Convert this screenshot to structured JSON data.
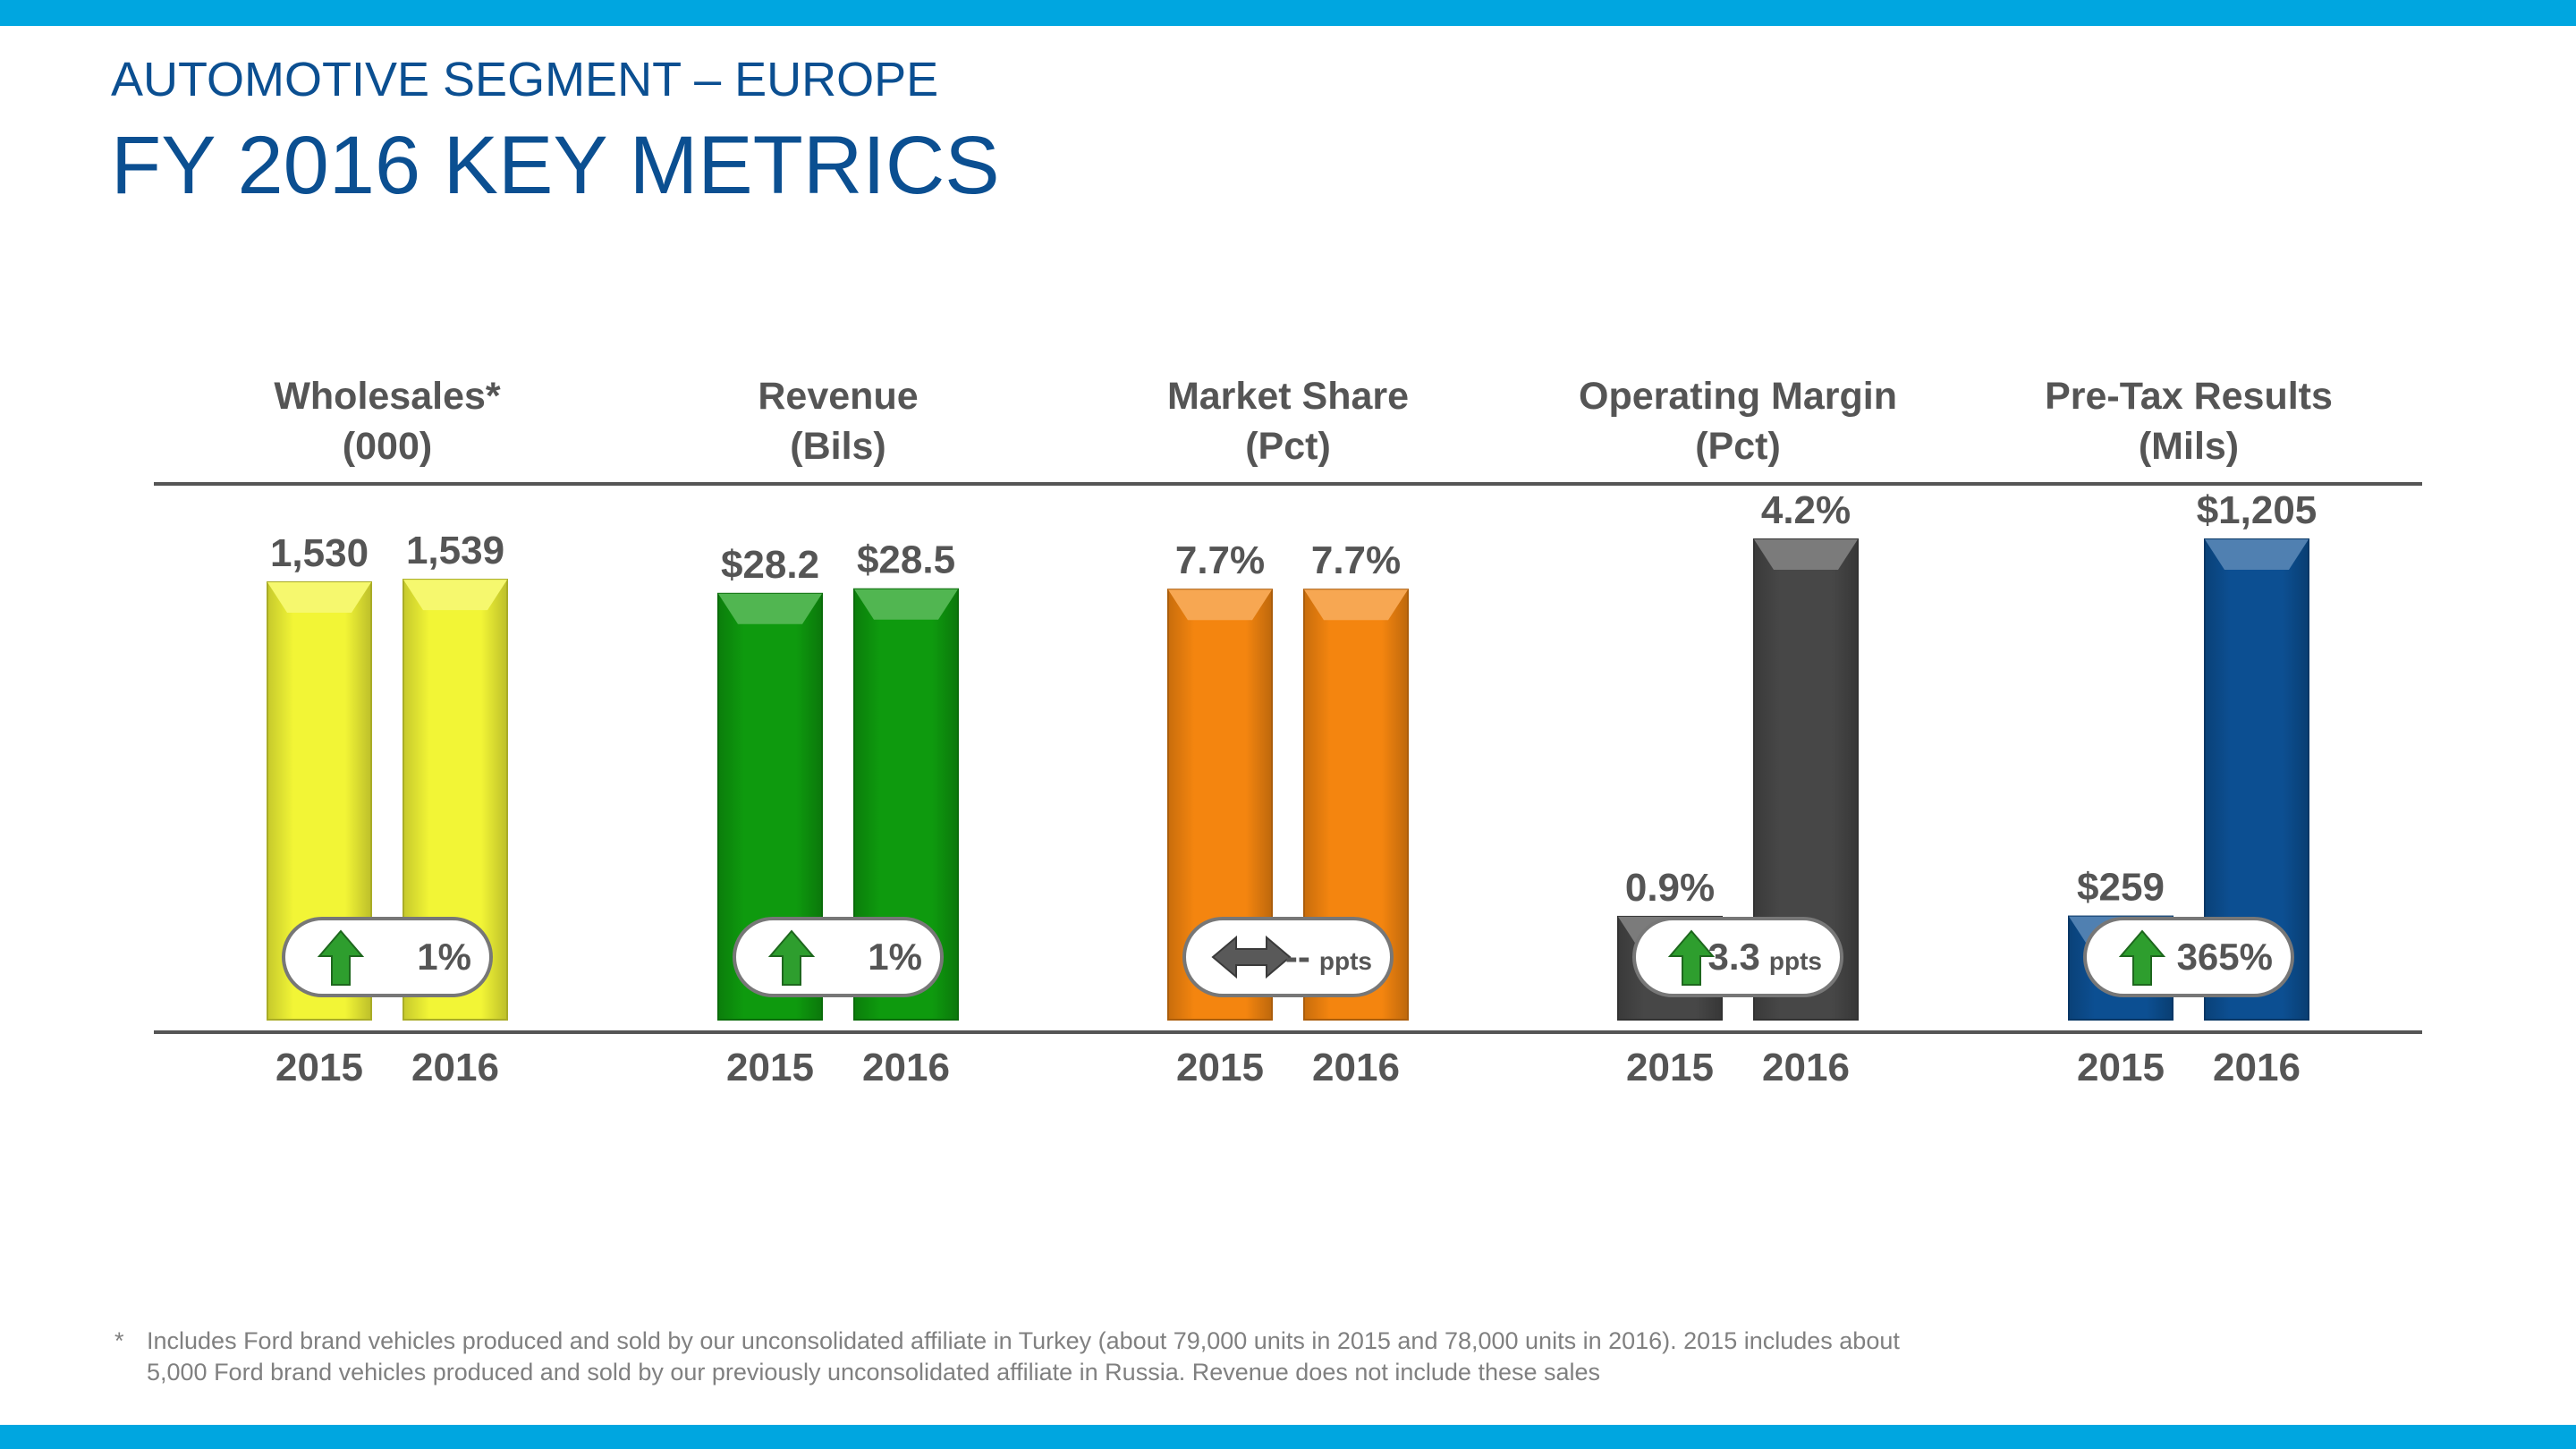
{
  "page": {
    "subtitle": "AUTOMOTIVE SEGMENT – EUROPE",
    "title": "FY 2016 KEY METRICS",
    "footnote_marker": "*",
    "footnote": "Includes Ford brand vehicles produced and sold by our unconsolidated affiliate in Turkey (about 79,000 units in 2015 and 78,000 units in 2016).  2015 includes about 5,000 Ford brand vehicles produced and sold by our previously unconsolidated affiliate in Russia. Revenue does not include these sales"
  },
  "colors": {
    "band": "#00A6E0",
    "title": "#0B4F91",
    "header_text": "#555555",
    "rule": "#555555",
    "up_arrow": "#2E9E2E",
    "flat_arrow": "#595959"
  },
  "chart_data": [
    {
      "type": "bar",
      "title": "Wholesales*",
      "unit_label": "(000)",
      "categories": [
        "2015",
        "2016"
      ],
      "values": [
        1530,
        1539
      ],
      "value_labels": [
        "1,530",
        "1,539"
      ],
      "ylim": [
        0,
        1680
      ],
      "color": "#F2F536",
      "change": {
        "direction": "up",
        "value": "1%",
        "unit": ""
      }
    },
    {
      "type": "bar",
      "title": "Revenue",
      "unit_label": "(Bils)",
      "categories": [
        "2015",
        "2016"
      ],
      "values": [
        28.2,
        28.5
      ],
      "value_labels": [
        "$28.2",
        "$28.5"
      ],
      "ylim": [
        0,
        31.8
      ],
      "color": "#0E9A0E",
      "change": {
        "direction": "up",
        "value": "1%",
        "unit": ""
      }
    },
    {
      "type": "bar",
      "title": "Market Share",
      "unit_label": "(Pct)",
      "categories": [
        "2015",
        "2016"
      ],
      "values": [
        7.7,
        7.7
      ],
      "value_labels": [
        "7.7%",
        "7.7%"
      ],
      "ylim": [
        0,
        8.6
      ],
      "color": "#F4850F",
      "change": {
        "direction": "flat",
        "value": "--",
        "unit": "ppts"
      }
    },
    {
      "type": "bar",
      "title": "Operating Margin",
      "unit_label": "(Pct)",
      "categories": [
        "2015",
        "2016"
      ],
      "values": [
        0.9,
        4.2
      ],
      "value_labels": [
        "0.9%",
        "4.2%"
      ],
      "ylim": [
        0,
        4.2
      ],
      "color": "#474747",
      "change": {
        "direction": "up",
        "value": "3.3",
        "unit": "ppts"
      }
    },
    {
      "type": "bar",
      "title": "Pre-Tax Results",
      "unit_label": "(Mils)",
      "categories": [
        "2015",
        "2016"
      ],
      "values": [
        259,
        1205
      ],
      "value_labels": [
        "$259",
        "$1,205"
      ],
      "ylim": [
        0,
        1205
      ],
      "color": "#0C4F92",
      "change": {
        "direction": "up",
        "value": "365%",
        "unit": ""
      }
    }
  ]
}
